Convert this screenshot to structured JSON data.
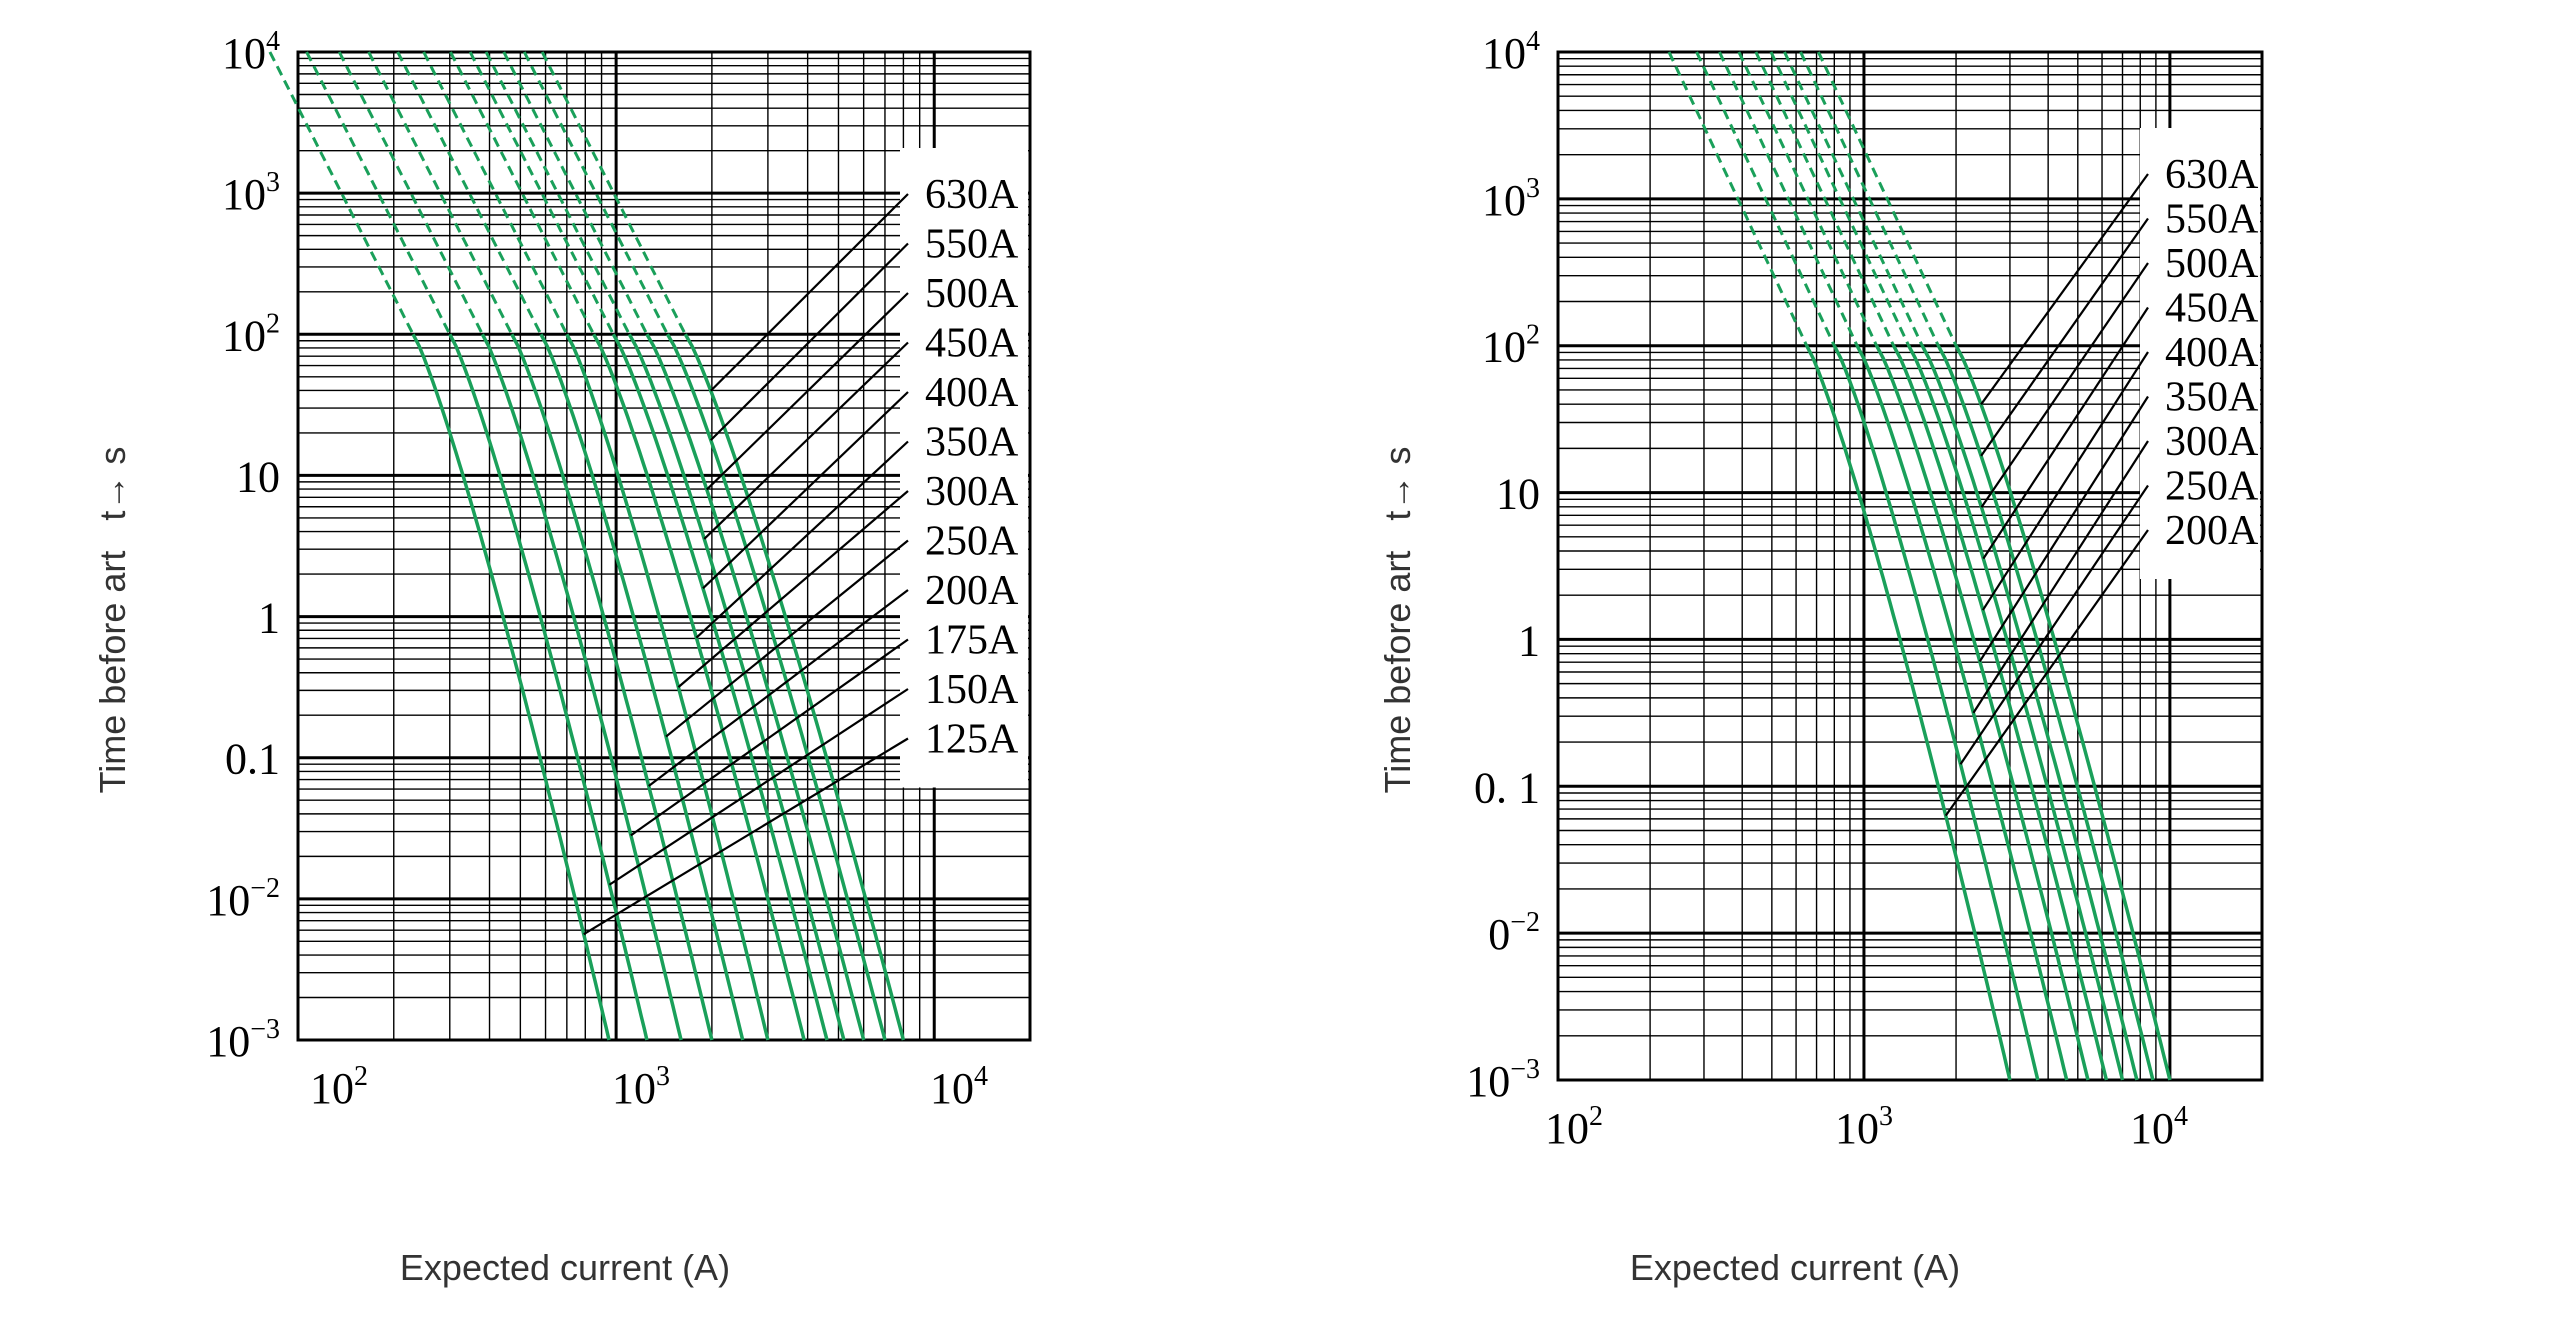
{
  "chart_data": [
    {
      "type": "line",
      "title": "",
      "xlabel": "Expected current (A)",
      "ylabel": "Time before art   t→ s",
      "xscale": "log",
      "yscale": "log",
      "xlim": [
        100,
        20000
      ],
      "ylim": [
        0.001,
        10000
      ],
      "grid": true,
      "legend": "right, labels connected to curves by leader lines",
      "xticks": [
        {
          "value": 100,
          "base": "10",
          "exp": "2"
        },
        {
          "value": 1000,
          "base": "10",
          "exp": "3"
        },
        {
          "value": 10000,
          "base": "10",
          "exp": "4"
        }
      ],
      "yticks": [
        {
          "value": 10000,
          "base": "10",
          "exp": "4"
        },
        {
          "value": 1000,
          "base": "10",
          "exp": "3"
        },
        {
          "value": 100,
          "base": "10",
          "exp": "2"
        },
        {
          "value": 10,
          "base": "10",
          "exp": ""
        },
        {
          "value": 1,
          "base": "1",
          "exp": ""
        },
        {
          "value": 0.1,
          "base": "0.1",
          "exp": ""
        },
        {
          "value": 0.01,
          "base": "10",
          "exp": "−2"
        },
        {
          "value": 0.001,
          "base": "10",
          "exp": "−3"
        }
      ],
      "series": [
        {
          "name": "630A",
          "t_at_100s": 1650,
          "t_at_0_001s": 8000
        },
        {
          "name": "550A",
          "t_at_100s": 1450,
          "t_at_0_001s": 7000
        },
        {
          "name": "500A",
          "t_at_100s": 1250,
          "t_at_0_001s": 6000
        },
        {
          "name": "450A",
          "t_at_100s": 1100,
          "t_at_0_001s": 5200
        },
        {
          "name": "400A",
          "t_at_100s": 980,
          "t_at_0_001s": 4600
        },
        {
          "name": "350A",
          "t_at_100s": 850,
          "t_at_0_001s": 3900
        },
        {
          "name": "300A",
          "t_at_100s": 700,
          "t_at_0_001s": 3000
        },
        {
          "name": "250A",
          "t_at_100s": 580,
          "t_at_0_001s": 2500
        },
        {
          "name": "200A",
          "t_at_100s": 470,
          "t_at_0_001s": 2000
        },
        {
          "name": "175A",
          "t_at_100s": 380,
          "t_at_0_001s": 1600
        },
        {
          "name": "150A",
          "t_at_100s": 300,
          "t_at_0_001s": 1250
        },
        {
          "name": "125A",
          "t_at_100s": 230,
          "t_at_0_001s": 950
        }
      ]
    },
    {
      "type": "line",
      "title": "",
      "xlabel": "Expected current (A)",
      "ylabel": "Time before art   t→ s",
      "xscale": "log",
      "yscale": "log",
      "xlim": [
        100,
        20000
      ],
      "ylim": [
        0.001,
        10000
      ],
      "grid": true,
      "legend": "right, labels connected to curves by leader lines",
      "xticks": [
        {
          "value": 100,
          "base": "10",
          "exp": "2"
        },
        {
          "value": 1000,
          "base": "10",
          "exp": "3"
        },
        {
          "value": 10000,
          "base": "10",
          "exp": "4"
        }
      ],
      "yticks": [
        {
          "value": 10000,
          "base": "10",
          "exp": "4"
        },
        {
          "value": 1000,
          "base": "10",
          "exp": "3"
        },
        {
          "value": 100,
          "base": "10",
          "exp": "2"
        },
        {
          "value": 10,
          "base": "10",
          "exp": ""
        },
        {
          "value": 1,
          "base": "1",
          "exp": ""
        },
        {
          "value": 0.1,
          "base": "0. 1",
          "exp": ""
        },
        {
          "value": 0.01,
          "base": "0",
          "exp": "−2"
        },
        {
          "value": 0.001,
          "base": "10",
          "exp": "−3"
        }
      ],
      "series": [
        {
          "name": "630A",
          "t_at_100s": 2000,
          "t_at_0_001s": 10000
        },
        {
          "name": "550A",
          "t_at_100s": 1750,
          "t_at_0_001s": 8800
        },
        {
          "name": "500A",
          "t_at_100s": 1550,
          "t_at_0_001s": 7800
        },
        {
          "name": "450A",
          "t_at_100s": 1400,
          "t_at_0_001s": 7000
        },
        {
          "name": "400A",
          "t_at_100s": 1250,
          "t_at_0_001s": 6200
        },
        {
          "name": "350A",
          "t_at_100s": 1100,
          "t_at_0_001s": 5400
        },
        {
          "name": "300A",
          "t_at_100s": 950,
          "t_at_0_001s": 4600
        },
        {
          "name": "250A",
          "t_at_100s": 800,
          "t_at_0_001s": 3700
        },
        {
          "name": "200A",
          "t_at_100s": 650,
          "t_at_0_001s": 3000
        }
      ]
    }
  ],
  "colors": {
    "curve": "#1aa05a",
    "grid": "#000000"
  }
}
